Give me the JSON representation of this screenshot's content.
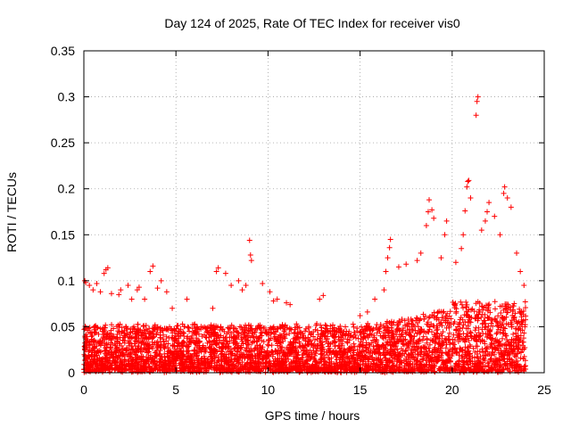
{
  "chart_data": {
    "type": "scatter",
    "title": "Day 124 of 2025, Rate Of TEC Index for receiver vis0",
    "xlabel": "GPS time / hours",
    "ylabel": "ROTI / TECUs",
    "xlim": [
      0,
      25
    ],
    "ylim": [
      0,
      0.35
    ],
    "xticks": [
      0,
      5,
      10,
      15,
      20,
      25
    ],
    "xtick_labels": [
      "0",
      "5",
      "10",
      "15",
      "20",
      "25"
    ],
    "yticks": [
      0,
      0.05,
      0.1,
      0.15,
      0.2,
      0.25,
      0.3,
      0.35
    ],
    "ytick_labels": [
      "0",
      "0.05",
      "0.1",
      "0.15",
      "0.2",
      "0.25",
      "0.3",
      "0.35"
    ],
    "grid": true,
    "marker": "+",
    "color": "#ff0000",
    "series": [
      {
        "name": "ROTI",
        "x_range": [
          0,
          24
        ],
        "typical_band": [
          0.0,
          0.05
        ],
        "points": [
          [
            0.05,
            0.1
          ],
          [
            0.1,
            0.098
          ],
          [
            0.3,
            0.095
          ],
          [
            0.5,
            0.09
          ],
          [
            0.7,
            0.097
          ],
          [
            0.9,
            0.088
          ],
          [
            1.1,
            0.108
          ],
          [
            1.2,
            0.112
          ],
          [
            1.3,
            0.114
          ],
          [
            1.5,
            0.086
          ],
          [
            1.9,
            0.085
          ],
          [
            2.0,
            0.09
          ],
          [
            2.4,
            0.095
          ],
          [
            2.6,
            0.08
          ],
          [
            2.9,
            0.09
          ],
          [
            3.0,
            0.093
          ],
          [
            3.3,
            0.08
          ],
          [
            3.6,
            0.11
          ],
          [
            3.75,
            0.116
          ],
          [
            4.0,
            0.092
          ],
          [
            4.2,
            0.1
          ],
          [
            4.5,
            0.088
          ],
          [
            4.8,
            0.07
          ],
          [
            5.6,
            0.08
          ],
          [
            7.0,
            0.07
          ],
          [
            7.2,
            0.11
          ],
          [
            7.3,
            0.114
          ],
          [
            7.7,
            0.108
          ],
          [
            8.0,
            0.095
          ],
          [
            8.4,
            0.1
          ],
          [
            8.6,
            0.09
          ],
          [
            8.8,
            0.095
          ],
          [
            9.0,
            0.144
          ],
          [
            9.05,
            0.128
          ],
          [
            9.1,
            0.122
          ],
          [
            9.7,
            0.097
          ],
          [
            10.1,
            0.088
          ],
          [
            10.3,
            0.078
          ],
          [
            10.5,
            0.08
          ],
          [
            11.0,
            0.076
          ],
          [
            11.2,
            0.074
          ],
          [
            12.8,
            0.08
          ],
          [
            13.0,
            0.084
          ],
          [
            15.0,
            0.062
          ],
          [
            15.4,
            0.066
          ],
          [
            15.8,
            0.08
          ],
          [
            16.3,
            0.09
          ],
          [
            16.4,
            0.11
          ],
          [
            16.5,
            0.125
          ],
          [
            16.6,
            0.136
          ],
          [
            16.65,
            0.145
          ],
          [
            17.1,
            0.115
          ],
          [
            17.5,
            0.118
          ],
          [
            18.1,
            0.122
          ],
          [
            18.3,
            0.13
          ],
          [
            18.6,
            0.16
          ],
          [
            18.7,
            0.175
          ],
          [
            18.75,
            0.188
          ],
          [
            18.9,
            0.177
          ],
          [
            19.0,
            0.168
          ],
          [
            19.4,
            0.125
          ],
          [
            19.6,
            0.15
          ],
          [
            19.7,
            0.165
          ],
          [
            20.2,
            0.12
          ],
          [
            20.5,
            0.135
          ],
          [
            20.6,
            0.15
          ],
          [
            20.7,
            0.176
          ],
          [
            20.8,
            0.202
          ],
          [
            20.85,
            0.208
          ],
          [
            20.9,
            0.209
          ],
          [
            21.0,
            0.19
          ],
          [
            21.3,
            0.28
          ],
          [
            21.35,
            0.295
          ],
          [
            21.4,
            0.3
          ],
          [
            21.6,
            0.155
          ],
          [
            21.8,
            0.165
          ],
          [
            21.9,
            0.175
          ],
          [
            22.0,
            0.185
          ],
          [
            22.3,
            0.17
          ],
          [
            22.6,
            0.15
          ],
          [
            22.8,
            0.195
          ],
          [
            22.85,
            0.202
          ],
          [
            23.0,
            0.19
          ],
          [
            23.2,
            0.18
          ],
          [
            23.5,
            0.13
          ],
          [
            23.7,
            0.11
          ],
          [
            23.9,
            0.095
          ]
        ]
      }
    ]
  }
}
